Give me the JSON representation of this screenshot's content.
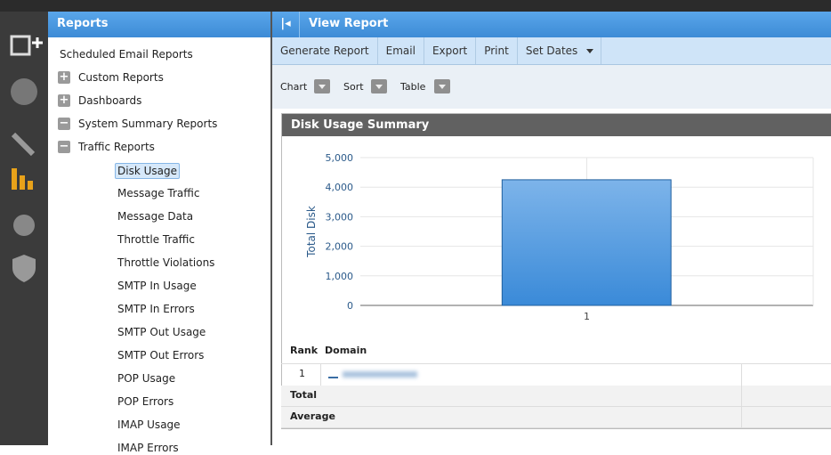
{
  "reports_panel": {
    "title": "Reports",
    "tree": [
      {
        "label": "Scheduled Email Reports"
      },
      {
        "label": "Custom Reports",
        "children": []
      },
      {
        "label": "Dashboards",
        "children": []
      },
      {
        "label": "System Summary Reports",
        "children": [
          {
            "label": "Traffic Reports",
            "children": [
              "Disk Usage",
              "Message Traffic",
              "Message Data",
              "Throttle Traffic",
              "Throttle Violations",
              "SMTP In Usage",
              "SMTP In Errors",
              "SMTP Out Usage",
              "SMTP Out Errors",
              "POP Usage",
              "POP Errors",
              "IMAP Usage",
              "IMAP Errors"
            ]
          }
        ]
      }
    ]
  },
  "view_panel": {
    "title": "View Report",
    "toolbar": [
      "Generate Report",
      "Email",
      "Export",
      "Print",
      "Set Dates"
    ],
    "options": [
      "Chart",
      "Sort",
      "Table"
    ]
  },
  "chart_data": {
    "type": "bar",
    "title": "Disk Usage Summary",
    "y_label": "Total Disk",
    "categories": [
      "1"
    ],
    "values": [
      4250
    ],
    "color": "#3a8ad8",
    "ylim": [
      0,
      5000
    ],
    "yticks": [
      0,
      {
        "value": 1000,
        "label": "1,000"
      },
      {
        "value": 2000,
        "label": "2,000"
      },
      {
        "value": 3000,
        "label": "3,000"
      },
      {
        "value": 4000,
        "label": "4,000"
      },
      {
        "value": 5000,
        "label": "5,000"
      }
    ],
    "grid": true
  },
  "table": {
    "headers": [
      "Rank",
      "Domain"
    ],
    "rows": [
      [
        "1"
      ]
    ],
    "footer": [
      "Total",
      "Average"
    ]
  }
}
